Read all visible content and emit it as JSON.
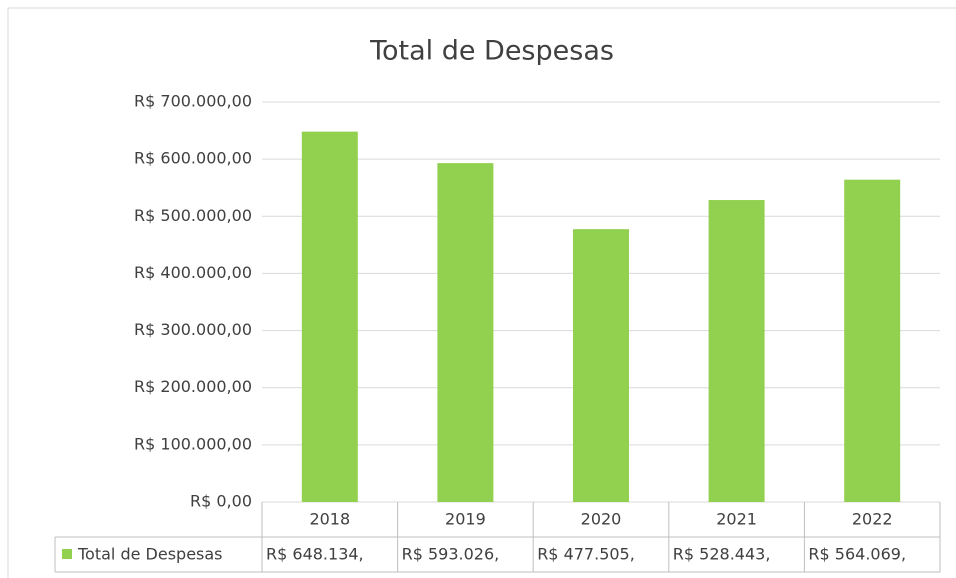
{
  "chart_data": {
    "type": "bar",
    "title": "Total de Despesas",
    "categories": [
      "2018",
      "2019",
      "2020",
      "2021",
      "2022"
    ],
    "series": [
      {
        "name": "Total de Despesas",
        "color": "#92d050",
        "values": [
          648134,
          593026,
          477505,
          528443,
          564069
        ],
        "value_labels": [
          "R$ 648.134,",
          "R$ 593.026,",
          "R$ 477.505,",
          "R$ 528.443,",
          "R$ 564.069,"
        ]
      }
    ],
    "ylim": [
      0,
      700000
    ],
    "yticks": [
      {
        "value": 0,
        "label": "R$ 0,00"
      },
      {
        "value": 100000,
        "label": "R$ 100.000,00"
      },
      {
        "value": 200000,
        "label": "R$ 200.000,00"
      },
      {
        "value": 300000,
        "label": "R$ 300.000,00"
      },
      {
        "value": 400000,
        "label": "R$ 400.000,00"
      },
      {
        "value": 500000,
        "label": "R$ 500.000,00"
      },
      {
        "value": 600000,
        "label": "R$ 600.000,00"
      },
      {
        "value": 700000,
        "label": "R$ 700.000,00"
      }
    ],
    "grid": true
  }
}
